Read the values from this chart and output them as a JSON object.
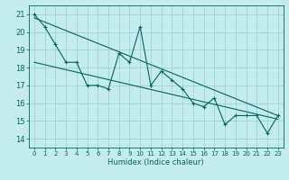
{
  "title": "",
  "xlabel": "Humidex (Indice chaleur)",
  "ylabel": "",
  "bg_color": "#c5ecec",
  "grid_color": "#99cccc",
  "line_color": "#006666",
  "marker_color": "#006666",
  "xlim": [
    -0.5,
    23.5
  ],
  "ylim": [
    13.5,
    21.5
  ],
  "xticks": [
    0,
    1,
    2,
    3,
    4,
    5,
    6,
    7,
    8,
    9,
    10,
    11,
    12,
    13,
    14,
    15,
    16,
    17,
    18,
    19,
    20,
    21,
    22,
    23
  ],
  "yticks": [
    14,
    15,
    16,
    17,
    18,
    19,
    20,
    21
  ],
  "data_x": [
    0,
    1,
    2,
    3,
    4,
    5,
    6,
    7,
    8,
    9,
    10,
    11,
    12,
    13,
    14,
    15,
    16,
    17,
    18,
    19,
    20,
    21,
    22,
    23
  ],
  "data_y": [
    21.0,
    20.3,
    19.3,
    18.3,
    18.3,
    17.0,
    17.0,
    16.8,
    18.8,
    18.3,
    20.3,
    17.0,
    17.8,
    17.3,
    16.8,
    16.0,
    15.8,
    16.3,
    14.8,
    15.3,
    15.3,
    15.3,
    14.3,
    15.3
  ],
  "trend1_x": [
    0,
    23
  ],
  "trend1_y": [
    20.8,
    15.3
  ],
  "trend2_x": [
    0,
    23
  ],
  "trend2_y": [
    18.3,
    15.1
  ],
  "xlabel_fontsize": 6,
  "tick_fontsize": 5,
  "linewidth": 0.8,
  "markersize": 3
}
